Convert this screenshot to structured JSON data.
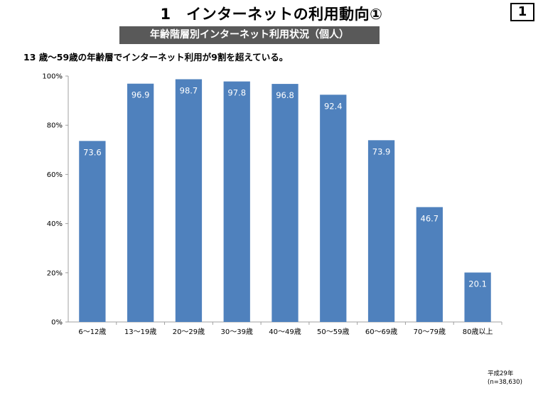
{
  "header": {
    "title": "1　インターネットの利用動向①",
    "page_number": "1",
    "subtitle": "年齢階層別インターネット利用状況（個人）",
    "lead": "13 歳～59歳の年齢層でインターネット利用が9割を超えている。"
  },
  "footnote": {
    "year": "平成29年",
    "sample": "(n=38,630)"
  },
  "colors": {
    "bar": "#4F81BD",
    "axis": "#A0A0A0",
    "banner": "#595959"
  },
  "chart_data": {
    "type": "bar",
    "categories": [
      "6～12歳",
      "13～19歳",
      "20～29歳",
      "30～39歳",
      "40～49歳",
      "50～59歳",
      "60～69歳",
      "70～79歳",
      "80歳以上"
    ],
    "values": [
      73.6,
      96.9,
      98.7,
      97.8,
      96.8,
      92.4,
      73.9,
      46.7,
      20.1
    ],
    "value_labels": [
      "73.6",
      "96.9",
      "98.7",
      "97.8",
      "96.8",
      "92.4",
      "73.9",
      "46.7",
      "20.1"
    ],
    "y_ticks": [
      0,
      20,
      40,
      60,
      80,
      100
    ],
    "y_tick_labels": [
      "0%",
      "20%",
      "40%",
      "60%",
      "80%",
      "100%"
    ],
    "ylim": [
      0,
      100
    ],
    "grid": false,
    "legend": "none"
  }
}
